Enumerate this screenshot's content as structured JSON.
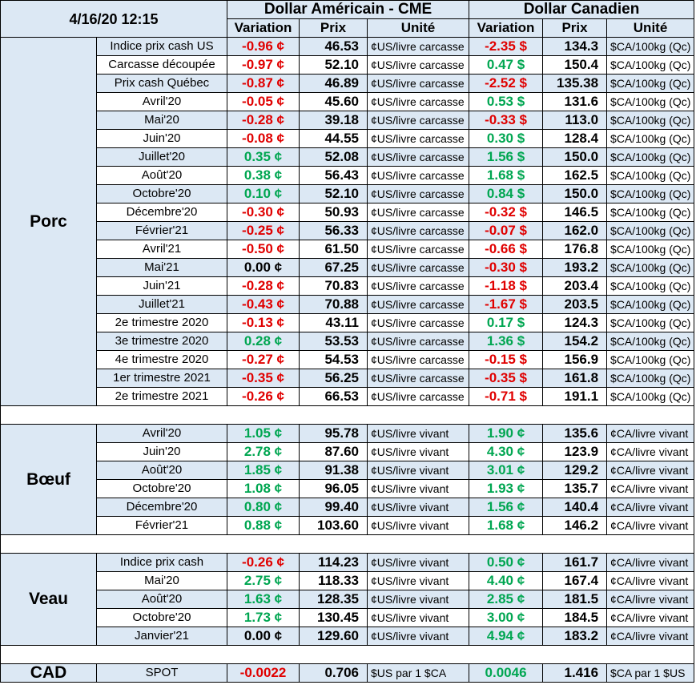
{
  "header": {
    "datetime": "4/16/20 12:15",
    "us_group": "Dollar Américain - CME",
    "ca_group": "Dollar Canadien",
    "col_variation": "Variation",
    "col_prix": "Prix",
    "col_unite": "Unité"
  },
  "sections": [
    {
      "name": "Porc",
      "rows": [
        {
          "label": "Indice prix cash US",
          "us_var": "-0.96 ¢",
          "us_prix": "46.53",
          "us_unit": "¢US/livre carcasse",
          "ca_var": "-2.35 $",
          "ca_prix": "134.3",
          "ca_unit": "$CA/100kg (Qc)"
        },
        {
          "label": "Carcasse découpée",
          "us_var": "-0.97 ¢",
          "us_prix": "52.10",
          "us_unit": "¢US/livre carcasse",
          "ca_var": "0.47 $",
          "ca_prix": "150.4",
          "ca_unit": "$CA/100kg (Qc)"
        },
        {
          "label": "Prix cash Québec",
          "us_var": "-0.87 ¢",
          "us_prix": "46.89",
          "us_unit": "¢US/livre carcasse",
          "ca_var": "-2.52 $",
          "ca_prix": "135.38",
          "ca_unit": "$CA/100kg (Qc)"
        },
        {
          "label": "Avril'20",
          "us_var": "-0.05 ¢",
          "us_prix": "45.60",
          "us_unit": "¢US/livre carcasse",
          "ca_var": "0.53 $",
          "ca_prix": "131.6",
          "ca_unit": "$CA/100kg (Qc)"
        },
        {
          "label": "Mai'20",
          "us_var": "-0.28 ¢",
          "us_prix": "39.18",
          "us_unit": "¢US/livre carcasse",
          "ca_var": "-0.33 $",
          "ca_prix": "113.0",
          "ca_unit": "$CA/100kg (Qc)"
        },
        {
          "label": "Juin'20",
          "us_var": "-0.08 ¢",
          "us_prix": "44.55",
          "us_unit": "¢US/livre carcasse",
          "ca_var": "0.30 $",
          "ca_prix": "128.4",
          "ca_unit": "$CA/100kg (Qc)"
        },
        {
          "label": "Juillet'20",
          "us_var": "0.35 ¢",
          "us_prix": "52.08",
          "us_unit": "¢US/livre carcasse",
          "ca_var": "1.56 $",
          "ca_prix": "150.0",
          "ca_unit": "$CA/100kg (Qc)"
        },
        {
          "label": "Août'20",
          "us_var": "0.38 ¢",
          "us_prix": "56.43",
          "us_unit": "¢US/livre carcasse",
          "ca_var": "1.68 $",
          "ca_prix": "162.5",
          "ca_unit": "$CA/100kg (Qc)"
        },
        {
          "label": "Octobre'20",
          "us_var": "0.10 ¢",
          "us_prix": "52.10",
          "us_unit": "¢US/livre carcasse",
          "ca_var": "0.84 $",
          "ca_prix": "150.0",
          "ca_unit": "$CA/100kg (Qc)"
        },
        {
          "label": "Décembre'20",
          "us_var": "-0.30 ¢",
          "us_prix": "50.93",
          "us_unit": "¢US/livre carcasse",
          "ca_var": "-0.32 $",
          "ca_prix": "146.5",
          "ca_unit": "$CA/100kg (Qc)"
        },
        {
          "label": "Février'21",
          "us_var": "-0.25 ¢",
          "us_prix": "56.33",
          "us_unit": "¢US/livre carcasse",
          "ca_var": "-0.07 $",
          "ca_prix": "162.0",
          "ca_unit": "$CA/100kg (Qc)"
        },
        {
          "label": "Avril'21",
          "us_var": "-0.50 ¢",
          "us_prix": "61.50",
          "us_unit": "¢US/livre carcasse",
          "ca_var": "-0.66 $",
          "ca_prix": "176.8",
          "ca_unit": "$CA/100kg (Qc)"
        },
        {
          "label": "Mai'21",
          "us_var": "0.00 ¢",
          "us_prix": "67.25",
          "us_unit": "¢US/livre carcasse",
          "ca_var": "-0.30 $",
          "ca_prix": "193.2",
          "ca_unit": "$CA/100kg (Qc)"
        },
        {
          "label": "Juin'21",
          "us_var": "-0.28 ¢",
          "us_prix": "70.83",
          "us_unit": "¢US/livre carcasse",
          "ca_var": "-1.18 $",
          "ca_prix": "203.4",
          "ca_unit": "$CA/100kg (Qc)"
        },
        {
          "label": "Juillet'21",
          "us_var": "-0.43 ¢",
          "us_prix": "70.88",
          "us_unit": "¢US/livre carcasse",
          "ca_var": "-1.67 $",
          "ca_prix": "203.5",
          "ca_unit": "$CA/100kg (Qc)"
        },
        {
          "label": "2e trimestre 2020",
          "us_var": "-0.13 ¢",
          "us_prix": "43.11",
          "us_unit": "¢US/livre carcasse",
          "ca_var": "0.17 $",
          "ca_prix": "124.3",
          "ca_unit": "$CA/100kg (Qc)"
        },
        {
          "label": "3e trimestre 2020",
          "us_var": "0.28 ¢",
          "us_prix": "53.53",
          "us_unit": "¢US/livre carcasse",
          "ca_var": "1.36 $",
          "ca_prix": "154.2",
          "ca_unit": "$CA/100kg (Qc)"
        },
        {
          "label": "4e trimestre 2020",
          "us_var": "-0.27 ¢",
          "us_prix": "54.53",
          "us_unit": "¢US/livre carcasse",
          "ca_var": "-0.15 $",
          "ca_prix": "156.9",
          "ca_unit": "$CA/100kg (Qc)"
        },
        {
          "label": "1er trimestre 2021",
          "us_var": "-0.35 ¢",
          "us_prix": "56.25",
          "us_unit": "¢US/livre carcasse",
          "ca_var": "-0.35 $",
          "ca_prix": "161.8",
          "ca_unit": "$CA/100kg (Qc)"
        },
        {
          "label": "2e trimestre 2021",
          "us_var": "-0.26 ¢",
          "us_prix": "66.53",
          "us_unit": "¢US/livre carcasse",
          "ca_var": "-0.71 $",
          "ca_prix": "191.1",
          "ca_unit": "$CA/100kg (Qc)"
        }
      ]
    },
    {
      "name": "Bœuf",
      "rows": [
        {
          "label": "Avril'20",
          "us_var": "1.05 ¢",
          "us_prix": "95.78",
          "us_unit": "¢US/livre vivant",
          "ca_var": "1.90 ¢",
          "ca_prix": "135.6",
          "ca_unit": "¢CA/livre vivant"
        },
        {
          "label": "Juin'20",
          "us_var": "2.78 ¢",
          "us_prix": "87.60",
          "us_unit": "¢US/livre vivant",
          "ca_var": "4.30 ¢",
          "ca_prix": "123.9",
          "ca_unit": "¢CA/livre vivant"
        },
        {
          "label": "Août'20",
          "us_var": "1.85 ¢",
          "us_prix": "91.38",
          "us_unit": "¢US/livre vivant",
          "ca_var": "3.01 ¢",
          "ca_prix": "129.2",
          "ca_unit": "¢CA/livre vivant"
        },
        {
          "label": "Octobre'20",
          "us_var": "1.08 ¢",
          "us_prix": "96.05",
          "us_unit": "¢US/livre vivant",
          "ca_var": "1.93 ¢",
          "ca_prix": "135.7",
          "ca_unit": "¢CA/livre vivant"
        },
        {
          "label": "Décembre'20",
          "us_var": "0.80 ¢",
          "us_prix": "99.40",
          "us_unit": "¢US/livre vivant",
          "ca_var": "1.56 ¢",
          "ca_prix": "140.4",
          "ca_unit": "¢CA/livre vivant"
        },
        {
          "label": "Février'21",
          "us_var": "0.88 ¢",
          "us_prix": "103.60",
          "us_unit": "¢US/livre vivant",
          "ca_var": "1.68 ¢",
          "ca_prix": "146.2",
          "ca_unit": "¢CA/livre vivant"
        }
      ]
    },
    {
      "name": "Veau",
      "rows": [
        {
          "label": "Indice prix cash",
          "us_var": "-0.26 ¢",
          "us_prix": "114.23",
          "us_unit": "¢US/livre vivant",
          "ca_var": "0.50 ¢",
          "ca_prix": "161.7",
          "ca_unit": "¢CA/livre vivant"
        },
        {
          "label": "Mai'20",
          "us_var": "2.75 ¢",
          "us_prix": "118.33",
          "us_unit": "¢US/livre vivant",
          "ca_var": "4.40 ¢",
          "ca_prix": "167.4",
          "ca_unit": "¢CA/livre vivant"
        },
        {
          "label": "Août'20",
          "us_var": "1.63 ¢",
          "us_prix": "128.35",
          "us_unit": "¢US/livre vivant",
          "ca_var": "2.85 ¢",
          "ca_prix": "181.5",
          "ca_unit": "¢CA/livre vivant"
        },
        {
          "label": "Octobre'20",
          "us_var": "1.73 ¢",
          "us_prix": "130.45",
          "us_unit": "¢US/livre vivant",
          "ca_var": "3.00 ¢",
          "ca_prix": "184.5",
          "ca_unit": "¢CA/livre vivant"
        },
        {
          "label": "Janvier'21",
          "us_var": "0.00 ¢",
          "us_prix": "129.60",
          "us_unit": "¢US/livre vivant",
          "ca_var": "4.94 ¢",
          "ca_prix": "183.2",
          "ca_unit": "¢CA/livre vivant"
        }
      ]
    },
    {
      "name": "CAD",
      "rows": [
        {
          "label": "SPOT",
          "us_var": "-0.0022",
          "us_prix": "0.706",
          "us_unit": "$US par 1 $CA",
          "ca_var": "0.0046",
          "ca_prix": "1.416",
          "ca_unit": "$CA par 1 $US"
        }
      ]
    }
  ],
  "colors": {
    "header_bg": "#dce8f4",
    "negative": "#e00000",
    "positive": "#00a651",
    "neutral": "#000000"
  }
}
